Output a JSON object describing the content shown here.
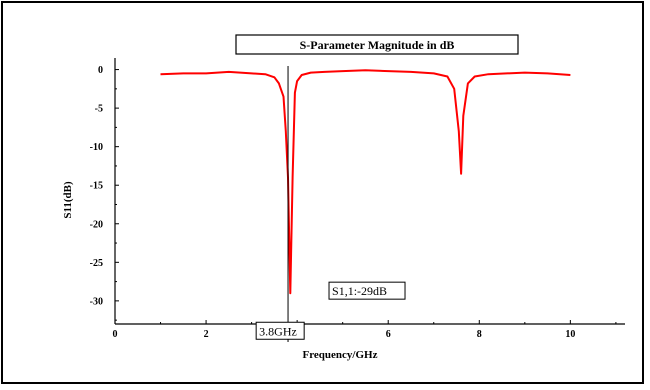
{
  "chart_data": {
    "type": "line",
    "title": "S-Parameter Magnitude in dB",
    "xlabel": "Frequency/GHz",
    "ylabel": "S11(dB)",
    "xlim": [
      0,
      11.2
    ],
    "ylim": [
      -33,
      1.5
    ],
    "xticks": [
      0,
      2,
      4,
      6,
      8,
      10
    ],
    "yticks": [
      0,
      -5,
      -10,
      -15,
      -20,
      -25,
      -30
    ],
    "grid": false,
    "line_color": "#ff0000",
    "series": [
      {
        "x": [
          1.0,
          1.5,
          2.0,
          2.5,
          3.0,
          3.3,
          3.5,
          3.6,
          3.7,
          3.75,
          3.8,
          3.85,
          3.9,
          3.95,
          4.0,
          4.1,
          4.3,
          4.6,
          5.0,
          5.5,
          6.0,
          6.5,
          7.0,
          7.3,
          7.45,
          7.55,
          7.6,
          7.65,
          7.75,
          7.9,
          8.2,
          8.6,
          9.0,
          9.5,
          10.0
        ],
        "y": [
          -0.6,
          -0.5,
          -0.5,
          -0.3,
          -0.5,
          -0.6,
          -1.0,
          -1.8,
          -3.5,
          -8.0,
          -14.0,
          -29.0,
          -14.0,
          -3.0,
          -1.5,
          -0.7,
          -0.4,
          -0.3,
          -0.2,
          -0.1,
          -0.2,
          -0.3,
          -0.5,
          -0.9,
          -2.5,
          -8.0,
          -13.5,
          -6.0,
          -1.8,
          -0.9,
          -0.6,
          -0.5,
          -0.4,
          -0.5,
          -0.7
        ]
      }
    ],
    "annotations": [
      {
        "type": "vline",
        "x": 3.8
      },
      {
        "type": "label",
        "text": "3.8GHz",
        "x": 3.1,
        "y": -34.2
      },
      {
        "type": "label",
        "text": "S1,1:-29dB",
        "x": 4.7,
        "y": -29
      }
    ]
  }
}
